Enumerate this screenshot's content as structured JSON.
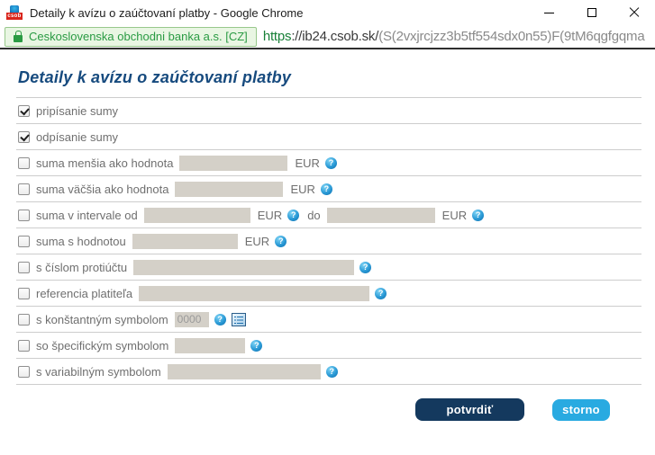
{
  "window": {
    "title": "Detaily k avízu o zaúčtovaní platby - Google Chrome",
    "favicon_text": "csob"
  },
  "address_bar": {
    "ev_badge": "Ceskoslovenska obchodni banka a.s. [CZ]",
    "url_scheme": "https",
    "url_host": "://ib24.csob.sk/",
    "url_path": "(S(2vxjrcjzz3b5tf554sdx0n55)F(9tM6qgfgqma"
  },
  "form": {
    "heading": "Detaily k avízu o zaúčtovaní platby",
    "eur": "EUR",
    "interval_do": "do",
    "rows": [
      {
        "label": "pripísanie sumy",
        "checked": true
      },
      {
        "label": "odpísanie sumy",
        "checked": true
      },
      {
        "label": "suma menšia ako hodnota",
        "checked": false
      },
      {
        "label": "suma väčšia ako hodnota",
        "checked": false
      },
      {
        "label": "suma v intervale od",
        "checked": false
      },
      {
        "label": "suma s hodnotou",
        "checked": false
      },
      {
        "label": "s číslom protiúčtu",
        "checked": false
      },
      {
        "label": "referencia platiteľa",
        "checked": false
      },
      {
        "label": "s konštantným symbolom",
        "checked": false,
        "value": "0000"
      },
      {
        "label": "so špecifickým symbolom",
        "checked": false
      },
      {
        "label": "s variabilným symbolom",
        "checked": false
      }
    ]
  },
  "buttons": {
    "confirm": "potvrdiť",
    "cancel": "storno"
  },
  "icons": {
    "help_glyph": "?"
  },
  "colors": {
    "confirm_bg": "#14395e",
    "cancel_bg": "#29aae1",
    "heading": "#164a7e",
    "ev_green": "#2a9b43"
  }
}
